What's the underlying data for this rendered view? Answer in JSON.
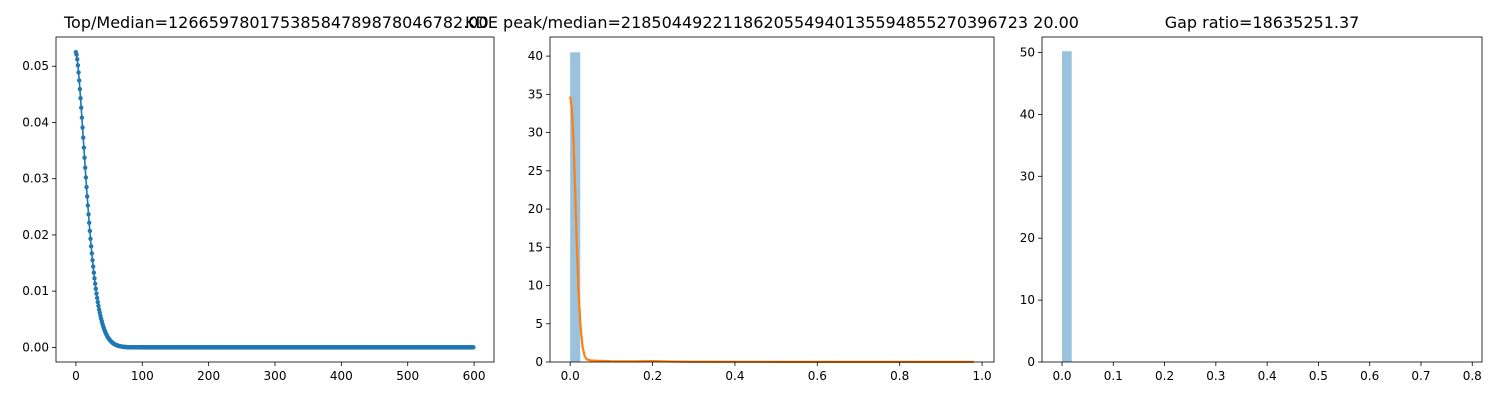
{
  "chart_data": [
    {
      "type": "line",
      "title": "Top/Median=12665978017538584789878046782.00",
      "xlabel": "",
      "ylabel": "",
      "xlim": [
        -30,
        630
      ],
      "ylim": [
        -0.0026,
        0.0552
      ],
      "xticks": [
        0,
        100,
        200,
        300,
        400,
        500,
        600
      ],
      "yticks": [
        0.0,
        0.01,
        0.02,
        0.03,
        0.04,
        0.05
      ],
      "ytick_labels": [
        "0.00",
        "0.01",
        "0.02",
        "0.03",
        "0.04",
        "0.05"
      ],
      "grid": false,
      "color": "#1f77b4",
      "series": [
        {
          "decay": {
            "peak": 0.0525,
            "scale": 22,
            "n_points": 600,
            "marker": "dot"
          }
        }
      ]
    },
    {
      "type": "histogram+line",
      "title": "KDE peak/median=2185044922118620554940135594855270396723 20.00",
      "xlabel": "",
      "ylabel": "",
      "xlim": [
        -0.049,
        1.029
      ],
      "ylim": [
        0,
        42.5
      ],
      "xticks": [
        0.0,
        0.2,
        0.4,
        0.6,
        0.8,
        1.0
      ],
      "xtick_labels": [
        "0.0",
        "0.2",
        "0.4",
        "0.6",
        "0.8",
        "1.0"
      ],
      "yticks": [
        0,
        5,
        10,
        15,
        20,
        25,
        30,
        35,
        40
      ],
      "grid": false,
      "bars": {
        "color": "#1f77b4",
        "opacity": 0.45,
        "bins": [
          {
            "x0": 0.0,
            "x1": 0.0245,
            "value": 40.5
          },
          {
            "x0": 0.196,
            "x1": 0.2205,
            "value": 0.05
          }
        ]
      },
      "kde": {
        "color": "#ff7f0e",
        "points": [
          [
            0.0,
            34.7
          ],
          [
            0.004,
            33.2
          ],
          [
            0.008,
            29.0
          ],
          [
            0.012,
            22.5
          ],
          [
            0.016,
            15.5
          ],
          [
            0.02,
            9.5
          ],
          [
            0.025,
            4.8
          ],
          [
            0.03,
            2.0
          ],
          [
            0.035,
            0.8
          ],
          [
            0.04,
            0.35
          ],
          [
            0.05,
            0.2
          ],
          [
            0.07,
            0.15
          ],
          [
            0.1,
            0.1
          ],
          [
            0.15,
            0.08
          ],
          [
            0.2,
            0.12
          ],
          [
            0.25,
            0.06
          ],
          [
            0.3,
            0.03
          ],
          [
            0.5,
            0.02
          ],
          [
            0.7,
            0.02
          ],
          [
            0.9,
            0.02
          ],
          [
            0.98,
            0.02
          ]
        ]
      }
    },
    {
      "type": "bar",
      "title": "Gap ratio=18635251.37",
      "xlabel": "",
      "ylabel": "",
      "xlim": [
        -0.039,
        0.819
      ],
      "ylim": [
        0,
        52.5
      ],
      "xticks": [
        0.0,
        0.1,
        0.2,
        0.3,
        0.4,
        0.5,
        0.6,
        0.7,
        0.8
      ],
      "xtick_labels": [
        "0.0",
        "0.1",
        "0.2",
        "0.3",
        "0.4",
        "0.5",
        "0.6",
        "0.7",
        "0.8"
      ],
      "yticks": [
        0,
        10,
        20,
        30,
        40,
        50
      ],
      "grid": false,
      "bars": {
        "color": "#1f77b4",
        "opacity": 0.45,
        "bins": [
          {
            "x0": 0.0,
            "x1": 0.019,
            "value": 50.2
          }
        ]
      }
    }
  ]
}
